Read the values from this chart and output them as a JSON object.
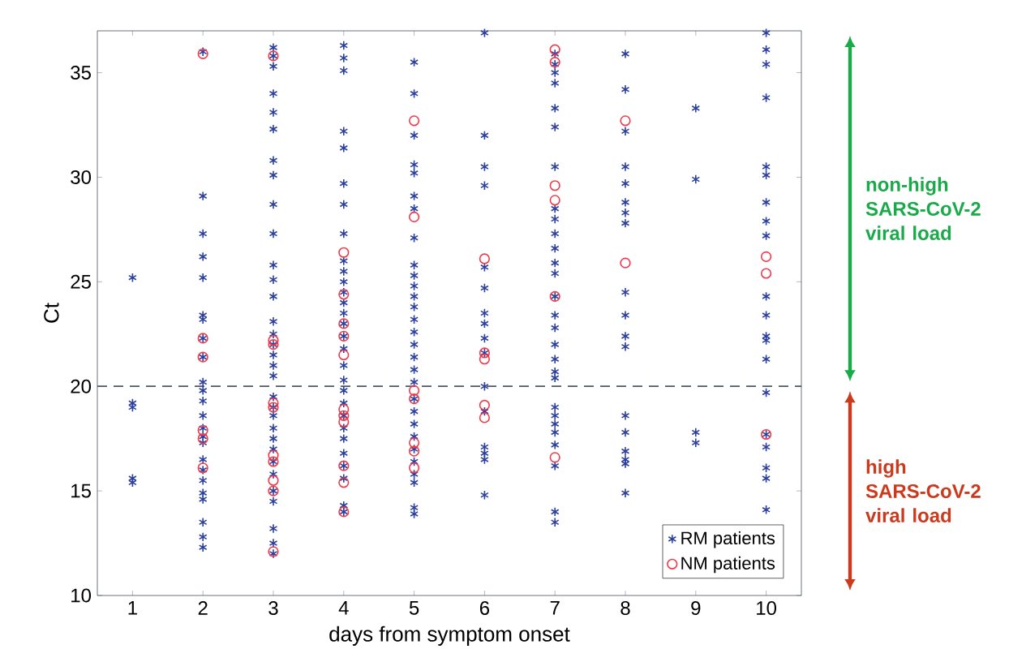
{
  "chart_data": {
    "type": "scatter",
    "xlabel": "days from symptom onset",
    "ylabel": "Ct",
    "xlim": [
      0.5,
      10.5
    ],
    "ylim": [
      10,
      37
    ],
    "xticks": [
      1,
      2,
      3,
      4,
      5,
      6,
      7,
      8,
      9,
      10
    ],
    "yticks": [
      10,
      15,
      20,
      25,
      30,
      35
    ],
    "grid": false,
    "legend": "bottom right",
    "ref_lines": [
      {
        "axis": "y",
        "value": 20,
        "label": null,
        "color": "#4d5a66",
        "line_style": "dashed"
      }
    ],
    "annotations": [
      "non-high SARS-CoV-2 viral load",
      "high SARS-CoV-2 viral load"
    ],
    "series": [
      {
        "name": "RM patients",
        "color": "#2b3f9e",
        "marker": "cross",
        "x": [
          1,
          1,
          1,
          1,
          1,
          2,
          2,
          2,
          2,
          2,
          2,
          2,
          2,
          2,
          2,
          2,
          2,
          2,
          2,
          2,
          2,
          2,
          2,
          2,
          2,
          2,
          2,
          2,
          2,
          3,
          3,
          3,
          3,
          3,
          3,
          3,
          3,
          3,
          3,
          3,
          3,
          3,
          3,
          3,
          3,
          3,
          3,
          3,
          3,
          3,
          3,
          3,
          3,
          3,
          3,
          3,
          3,
          3,
          3,
          3,
          3,
          4,
          4,
          4,
          4,
          4,
          4,
          4,
          4,
          4,
          4,
          4,
          4,
          4,
          4,
          4,
          4,
          4,
          4,
          4,
          4,
          4,
          4,
          4,
          4,
          4,
          4,
          4,
          4,
          4,
          5,
          5,
          5,
          5,
          5,
          5,
          5,
          5,
          5,
          5,
          5,
          5,
          5,
          5,
          5,
          5,
          5,
          5,
          5,
          5,
          5,
          5,
          5,
          5,
          5,
          5,
          5,
          5,
          5,
          6,
          6,
          6,
          6,
          6,
          6,
          6,
          6,
          6,
          6,
          6,
          6,
          6,
          6,
          6,
          6,
          7,
          7,
          7,
          7,
          7,
          7,
          7,
          7,
          7,
          7,
          7,
          7,
          7,
          7,
          7,
          7,
          7,
          7,
          7,
          7,
          7,
          7,
          7,
          7,
          7,
          7,
          7,
          7,
          8,
          8,
          8,
          8,
          8,
          8,
          8,
          8,
          8,
          8,
          8,
          8,
          8,
          8,
          8,
          8,
          8,
          8,
          9,
          9,
          9,
          9,
          10,
          10,
          10,
          10,
          10,
          10,
          10,
          10,
          10,
          10,
          10,
          10,
          10,
          10,
          10,
          10,
          10,
          10,
          10,
          10
        ],
        "values": [
          25.2,
          19.2,
          19.0,
          15.6,
          15.4,
          36.0,
          29.1,
          27.3,
          26.2,
          25.2,
          23.4,
          23.2,
          22.3,
          21.4,
          20.2,
          19.8,
          19.3,
          18.6,
          18.0,
          17.6,
          17.3,
          16.5,
          16.0,
          15.5,
          14.9,
          14.6,
          13.5,
          12.8,
          12.3,
          36.2,
          35.8,
          35.3,
          34.0,
          33.1,
          32.3,
          30.8,
          30.1,
          28.7,
          27.3,
          25.8,
          25.1,
          24.3,
          23.1,
          22.5,
          22.0,
          21.5,
          21.0,
          20.5,
          19.5,
          19.0,
          18.6,
          18.0,
          17.5,
          17.0,
          16.4,
          15.8,
          15.0,
          14.5,
          13.2,
          12.5,
          12.0,
          36.3,
          35.7,
          35.1,
          32.2,
          31.4,
          29.7,
          28.7,
          27.3,
          26.0,
          25.5,
          25.0,
          24.5,
          24.0,
          23.5,
          23.0,
          22.4,
          21.8,
          21.0,
          20.3,
          19.8,
          19.2,
          18.6,
          18.0,
          17.5,
          16.8,
          16.2,
          15.6,
          14.3,
          14.0,
          35.5,
          34.0,
          32.0,
          30.6,
          30.2,
          29.1,
          28.5,
          27.1,
          25.8,
          25.3,
          24.8,
          24.3,
          23.8,
          23.2,
          22.6,
          22.0,
          21.4,
          20.8,
          20.2,
          19.4,
          18.8,
          18.2,
          17.6,
          17.0,
          16.4,
          15.8,
          15.4,
          14.2,
          13.9,
          36.9,
          32.0,
          30.5,
          29.6,
          25.7,
          24.7,
          23.5,
          23.0,
          22.3,
          21.6,
          20.0,
          18.8,
          17.1,
          16.8,
          16.5,
          14.8,
          35.9,
          35.4,
          35.0,
          34.5,
          33.3,
          32.4,
          30.5,
          28.5,
          28.0,
          27.3,
          26.6,
          25.9,
          25.4,
          24.3,
          23.4,
          22.8,
          22.0,
          21.3,
          20.7,
          20.4,
          19.0,
          18.6,
          18.2,
          17.8,
          17.2,
          16.2,
          14.0,
          13.5,
          35.9,
          34.2,
          32.2,
          30.5,
          29.7,
          28.8,
          28.3,
          27.8,
          24.5,
          23.4,
          22.4,
          21.9,
          18.6,
          17.8,
          16.9,
          16.5,
          16.3,
          14.9,
          33.3,
          29.9,
          17.8,
          17.3,
          36.9,
          36.1,
          35.4,
          33.8,
          30.5,
          30.1,
          28.8,
          27.9,
          27.2,
          24.3,
          23.4,
          22.4,
          22.2,
          21.3,
          19.7,
          17.7,
          17.1,
          16.1,
          15.6,
          14.1
        ]
      },
      {
        "name": "NM patients",
        "color": "#f03a4a",
        "marker": "circle",
        "x": [
          2,
          2,
          2,
          2,
          2,
          2,
          3,
          3,
          3,
          3,
          3,
          3,
          3,
          3,
          3,
          3,
          4,
          4,
          4,
          4,
          4,
          4,
          4,
          4,
          4,
          4,
          4,
          5,
          5,
          5,
          5,
          5,
          5,
          5,
          6,
          6,
          6,
          6,
          6,
          7,
          7,
          7,
          7,
          7,
          7,
          8,
          8,
          10,
          10,
          10
        ],
        "values": [
          35.9,
          22.3,
          21.4,
          17.9,
          17.5,
          16.1,
          35.8,
          22.2,
          22.0,
          19.2,
          19.0,
          16.7,
          16.4,
          15.5,
          15.0,
          12.1,
          26.4,
          24.4,
          23.0,
          22.4,
          21.5,
          18.9,
          18.6,
          18.3,
          16.2,
          15.4,
          14.0,
          32.7,
          28.1,
          19.8,
          19.4,
          17.3,
          16.9,
          16.1,
          26.1,
          21.6,
          21.3,
          19.1,
          18.5,
          36.1,
          35.5,
          29.6,
          28.9,
          24.3,
          16.6,
          32.7,
          25.9,
          26.2,
          25.4,
          17.7
        ]
      }
    ]
  }
}
